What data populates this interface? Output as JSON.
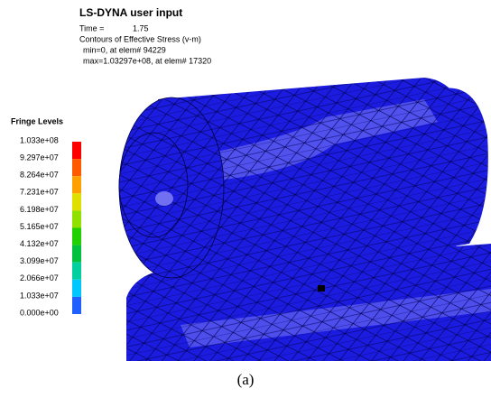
{
  "header": {
    "title": "LS-DYNA user input",
    "time_label": "Time =",
    "time_value": "1.75",
    "contours": "Contours of Effective Stress (v-m)",
    "min": "min=0, at elem# 94229",
    "max": "max=1.03297e+08, at elem# 17320"
  },
  "legend": {
    "title": "Fringe Levels",
    "levels": [
      "1.033e+08",
      "9.297e+07",
      "8.264e+07",
      "7.231e+07",
      "6.198e+07",
      "5.165e+07",
      "4.132e+07",
      "3.099e+07",
      "2.066e+07",
      "1.033e+07",
      "0.000e+00"
    ],
    "colors": [
      "#ff0000",
      "#ff5a00",
      "#ffa000",
      "#e0e000",
      "#90e000",
      "#20d000",
      "#00c040",
      "#00d0a0",
      "#00c8ff",
      "#2060ff"
    ]
  },
  "caption": "(a)"
}
